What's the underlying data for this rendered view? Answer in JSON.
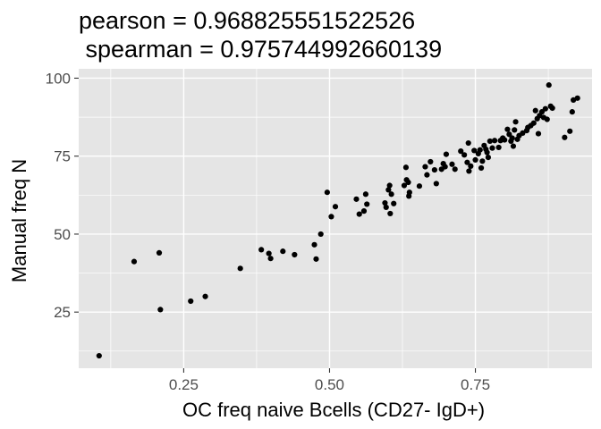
{
  "chart_data": {
    "type": "scatter",
    "title": "pearson = 0.968825551522526",
    "subtitle": " spearman = 0.975744992660139",
    "xlabel": "OC freq naive Bcells (CD27- IgD+)",
    "ylabel": "Manual freq N",
    "xlim": [
      0.07,
      0.95
    ],
    "ylim": [
      7,
      103
    ],
    "x_ticks": [
      0.25,
      0.5,
      0.75
    ],
    "x_tick_labels": [
      "0.25",
      "0.50",
      "0.75"
    ],
    "y_ticks": [
      25,
      50,
      75,
      100
    ],
    "y_tick_labels": [
      "25",
      "50",
      "75",
      "100"
    ],
    "grid": true,
    "panel_color": "#e5e5e5",
    "grid_color": "#ffffff",
    "point_color": "#000000",
    "points": [
      [
        0.105,
        11.0
      ],
      [
        0.165,
        41.2
      ],
      [
        0.208,
        44.0
      ],
      [
        0.21,
        25.8
      ],
      [
        0.262,
        28.5
      ],
      [
        0.287,
        30.0
      ],
      [
        0.347,
        39.0
      ],
      [
        0.383,
        45.0
      ],
      [
        0.396,
        43.8
      ],
      [
        0.399,
        42.2
      ],
      [
        0.42,
        44.5
      ],
      [
        0.44,
        43.4
      ],
      [
        0.474,
        46.6
      ],
      [
        0.477,
        42.0
      ],
      [
        0.485,
        50.0
      ],
      [
        0.496,
        63.4
      ],
      [
        0.503,
        55.6
      ],
      [
        0.51,
        58.8
      ],
      [
        0.546,
        61.2
      ],
      [
        0.551,
        56.4
      ],
      [
        0.559,
        57.4
      ],
      [
        0.562,
        62.8
      ],
      [
        0.564,
        59.6
      ],
      [
        0.595,
        60.0
      ],
      [
        0.597,
        58.6
      ],
      [
        0.601,
        64.2
      ],
      [
        0.603,
        65.6
      ],
      [
        0.604,
        56.6
      ],
      [
        0.606,
        62.8
      ],
      [
        0.61,
        59.8
      ],
      [
        0.628,
        65.6
      ],
      [
        0.631,
        71.4
      ],
      [
        0.632,
        67.4
      ],
      [
        0.635,
        66.6
      ],
      [
        0.636,
        62.2
      ],
      [
        0.637,
        63.4
      ],
      [
        0.654,
        65.4
      ],
      [
        0.664,
        71.6
      ],
      [
        0.667,
        69.0
      ],
      [
        0.673,
        73.2
      ],
      [
        0.68,
        70.6
      ],
      [
        0.683,
        66.2
      ],
      [
        0.692,
        70.8
      ],
      [
        0.695,
        72.6
      ],
      [
        0.698,
        71.6
      ],
      [
        0.7,
        75.6
      ],
      [
        0.71,
        72.4
      ],
      [
        0.715,
        70.8
      ],
      [
        0.725,
        76.6
      ],
      [
        0.731,
        75.4
      ],
      [
        0.736,
        73.0
      ],
      [
        0.738,
        79.2
      ],
      [
        0.739,
        70.2
      ],
      [
        0.742,
        71.8
      ],
      [
        0.748,
        76.8
      ],
      [
        0.75,
        73.8
      ],
      [
        0.755,
        75.8
      ],
      [
        0.758,
        77.0
      ],
      [
        0.76,
        71.2
      ],
      [
        0.762,
        73.4
      ],
      [
        0.765,
        78.4
      ],
      [
        0.768,
        77.2
      ],
      [
        0.77,
        76.2
      ],
      [
        0.772,
        74.6
      ],
      [
        0.775,
        79.8
      ],
      [
        0.779,
        77.6
      ],
      [
        0.783,
        80.0
      ],
      [
        0.79,
        77.8
      ],
      [
        0.793,
        80.0
      ],
      [
        0.797,
        80.8
      ],
      [
        0.8,
        80.2
      ],
      [
        0.805,
        83.6
      ],
      [
        0.808,
        82.0
      ],
      [
        0.811,
        79.8
      ],
      [
        0.813,
        80.8
      ],
      [
        0.815,
        78.2
      ],
      [
        0.817,
        83.4
      ],
      [
        0.819,
        86.0
      ],
      [
        0.822,
        80.4
      ],
      [
        0.825,
        81.6
      ],
      [
        0.831,
        82.4
      ],
      [
        0.838,
        83.2
      ],
      [
        0.84,
        84.2
      ],
      [
        0.845,
        84.8
      ],
      [
        0.85,
        85.6
      ],
      [
        0.853,
        89.6
      ],
      [
        0.856,
        87.0
      ],
      [
        0.858,
        82.2
      ],
      [
        0.86,
        88.0
      ],
      [
        0.864,
        89.2
      ],
      [
        0.867,
        87.4
      ],
      [
        0.87,
        90.2
      ],
      [
        0.873,
        86.8
      ],
      [
        0.876,
        97.8
      ],
      [
        0.879,
        91.0
      ],
      [
        0.882,
        90.4
      ],
      [
        0.903,
        81.0
      ],
      [
        0.912,
        83.0
      ],
      [
        0.916,
        89.2
      ],
      [
        0.918,
        93.0
      ],
      [
        0.925,
        93.6
      ]
    ]
  }
}
